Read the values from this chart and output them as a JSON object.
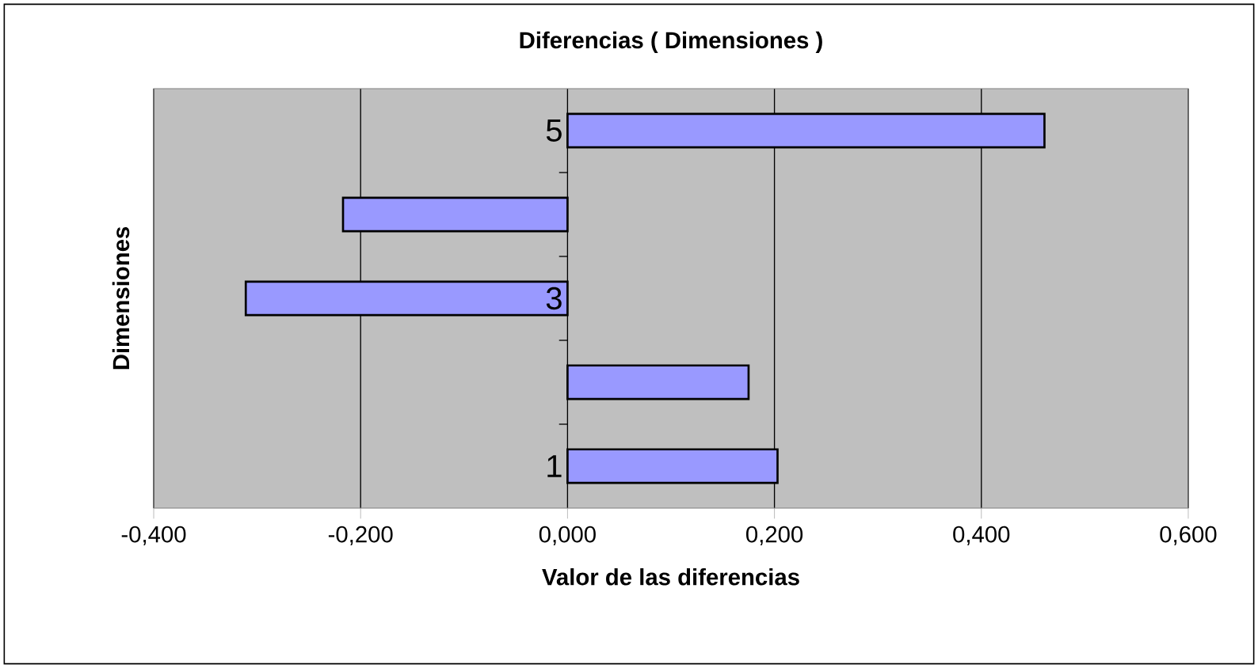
{
  "chart_data": {
    "type": "bar",
    "orientation": "horizontal",
    "title": "Diferencias ( Dimensiones )",
    "xlabel": "Valor de las diferencias",
    "ylabel": "Dimensiones",
    "categories": [
      "5",
      null,
      "3",
      null,
      "1"
    ],
    "values": [
      0.461,
      -0.217,
      -0.311,
      0.175,
      0.203
    ],
    "color": "#9999ff",
    "xlim": [
      -0.4,
      0.6
    ],
    "xticks": [
      {
        "value": -0.4,
        "label": "-0,400"
      },
      {
        "value": -0.2,
        "label": "-0,200"
      },
      {
        "value": 0,
        "label": "0,000"
      },
      {
        "value": 0.2,
        "label": "0,200"
      },
      {
        "value": 0.4,
        "label": "0,400"
      },
      {
        "value": 0.6,
        "label": "0,600"
      }
    ],
    "grid": "x"
  }
}
